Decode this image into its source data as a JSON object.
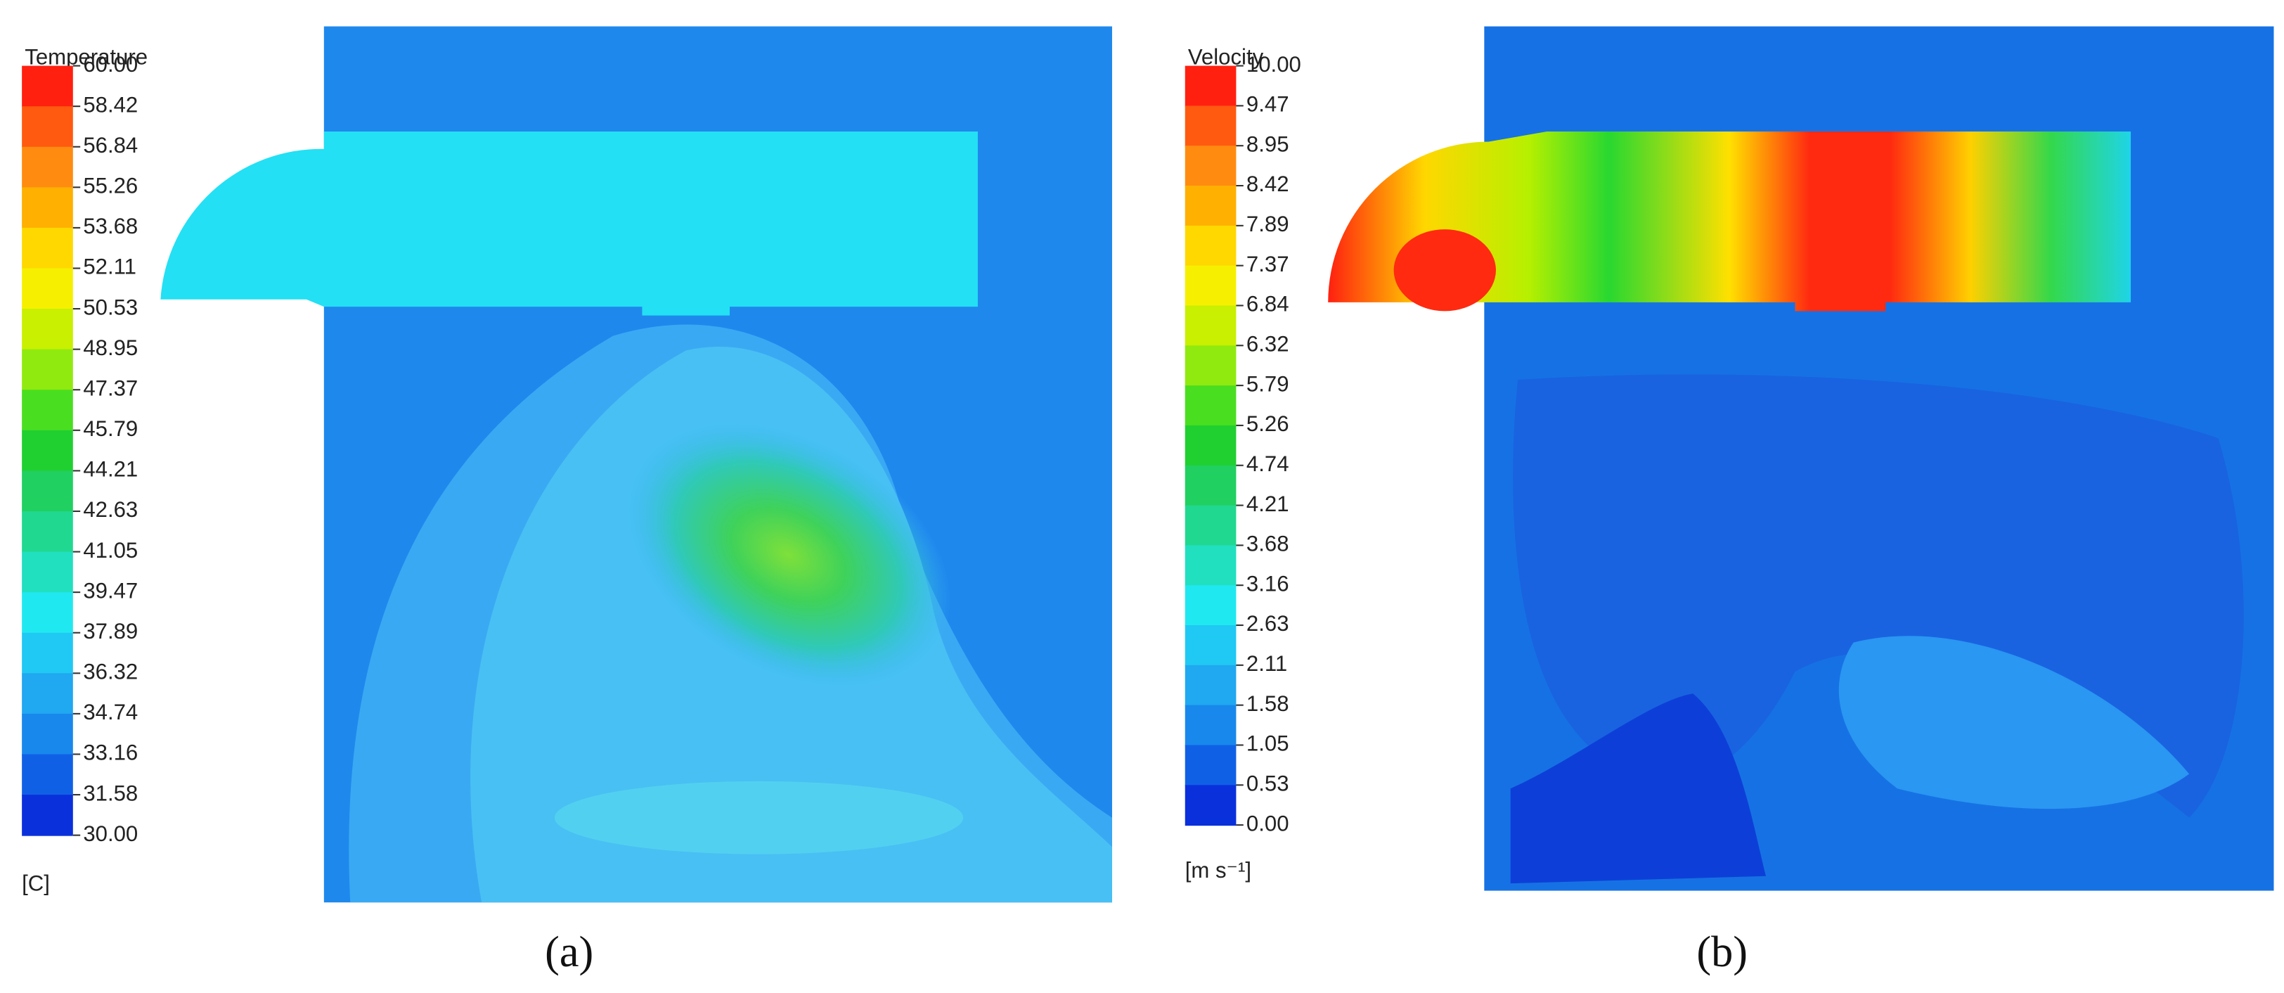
{
  "panels": [
    {
      "legend_title": "Temperature",
      "ticks": [
        "60.00",
        "58.42",
        "56.84",
        "55.26",
        "53.68",
        "52.11",
        "50.53",
        "48.95",
        "47.37",
        "45.79",
        "44.21",
        "42.63",
        "41.05",
        "39.47",
        "37.89",
        "36.32",
        "34.74",
        "33.16",
        "31.58",
        "30.00"
      ],
      "unit": "[C]",
      "caption": "(a)"
    },
    {
      "legend_title": "Velocity",
      "ticks": [
        "10.00",
        "9.47",
        "8.95",
        "8.42",
        "7.89",
        "7.37",
        "6.84",
        "6.32",
        "5.79",
        "5.26",
        "4.74",
        "4.21",
        "3.68",
        "3.16",
        "2.63",
        "2.11",
        "1.58",
        "1.05",
        "0.53",
        "0.00"
      ],
      "unit": "[m s⁻¹]",
      "caption": "(b)"
    }
  ]
}
